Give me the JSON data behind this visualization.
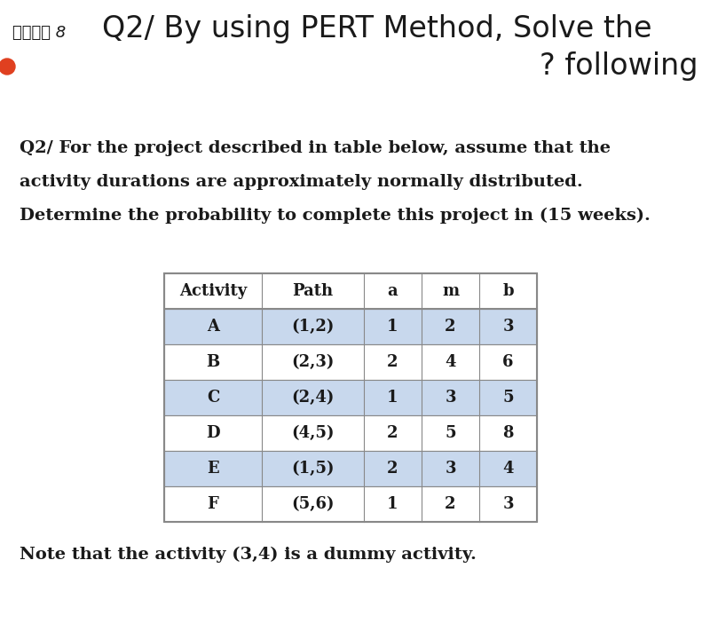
{
  "bg_color": "#ffffff",
  "title_arabic": "بلاط 8",
  "title_main": "Q2/ By using PERT Method, Solve the",
  "title_sub": "? following",
  "question_text_lines": [
    "Q2/ For the project described in table below, assume that the",
    "activity durations are approximately normally distributed.",
    "Determine the probability to complete this project in (15 weeks)."
  ],
  "table_headers": [
    "Activity",
    "Path",
    "a",
    "m",
    "b"
  ],
  "table_data": [
    [
      "A",
      "(1,2)",
      "1",
      "2",
      "3"
    ],
    [
      "B",
      "(2,3)",
      "2",
      "4",
      "6"
    ],
    [
      "C",
      "(2,4)",
      "1",
      "3",
      "5"
    ],
    [
      "D",
      "(4,5)",
      "2",
      "5",
      "8"
    ],
    [
      "E",
      "(1,5)",
      "2",
      "3",
      "4"
    ],
    [
      "F",
      "(5,6)",
      "1",
      "2",
      "3"
    ]
  ],
  "note_text": "Note that the activity (3,4) is a dummy activity.",
  "shaded_rows": [
    0,
    2,
    4
  ],
  "row_shade_color": "#c8d8ed",
  "table_border_color": "#888888",
  "text_color": "#1a1a1a",
  "bullet_color": "#e04020",
  "title_fontsize": 24,
  "arabic_fontsize": 13,
  "question_fontsize": 14,
  "note_fontsize": 14,
  "table_header_fontsize": 13,
  "table_data_fontsize": 13
}
